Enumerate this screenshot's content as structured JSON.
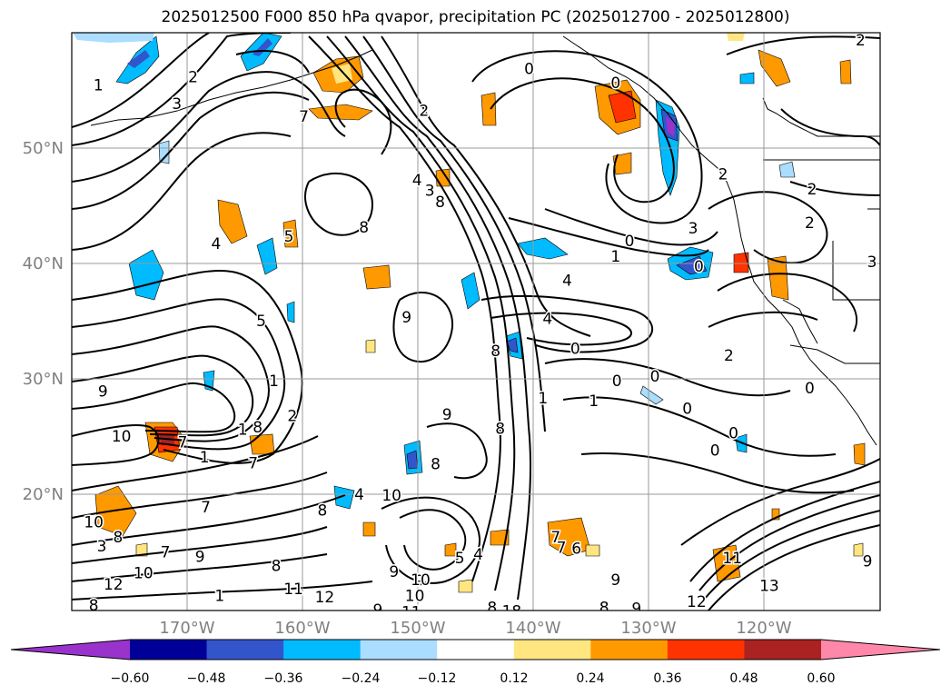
{
  "title": "2025012500 F000 850 hPa qvapor, precipitation PC (2025012700 - 2025012800)",
  "chart_data": {
    "type": "heatmap",
    "title": "2025012500 F000 850 hPa qvapor, precipitation PC (2025012700 - 2025012800)",
    "projection": "map",
    "lon_range": [
      -179,
      -109
    ],
    "lat_range": [
      10,
      60
    ],
    "x_ticks": [
      "170°W",
      "160°W",
      "150°W",
      "140°W",
      "130°W",
      "120°W"
    ],
    "x_tick_values": [
      -170,
      -160,
      -150,
      -140,
      -130,
      -120
    ],
    "y_ticks": [
      "50°N",
      "40°N",
      "30°N",
      "20°N"
    ],
    "y_tick_values": [
      50,
      40,
      30,
      20
    ],
    "grid": true,
    "colorbar": {
      "orientation": "horizontal",
      "extend": "both",
      "tick_labels": [
        "−0.60",
        "−0.48",
        "−0.36",
        "−0.24",
        "−0.12",
        "0.12",
        "0.24",
        "0.36",
        "0.48",
        "0.60"
      ],
      "tick_values": [
        -0.6,
        -0.48,
        -0.36,
        -0.24,
        -0.12,
        0.12,
        0.24,
        0.36,
        0.48,
        0.6
      ],
      "colors": [
        "#9933cc",
        "#000099",
        "#3355cc",
        "#00bbff",
        "#aaddff",
        "#ffffff",
        "#ffe680",
        "#ff9900",
        "#ff3300",
        "#aa2222",
        "#ff88aa"
      ]
    },
    "contour_labels": [
      {
        "text": "1",
        "lon": -176.7,
        "lat": 55.4
      },
      {
        "text": "2",
        "lon": -168.5,
        "lat": 56.1
      },
      {
        "text": "3",
        "lon": -169.9,
        "lat": 53.8
      },
      {
        "text": "7",
        "lon": -158.9,
        "lat": 52.7
      },
      {
        "text": "2",
        "lon": -148.5,
        "lat": 53.2
      },
      {
        "text": "0",
        "lon": -139.4,
        "lat": 56.8
      },
      {
        "text": "0",
        "lon": -131.9,
        "lat": 55.6
      },
      {
        "text": "2",
        "lon": -122.6,
        "lat": 47.7
      },
      {
        "text": "3",
        "lon": -125.2,
        "lat": 43.0
      },
      {
        "text": "2",
        "lon": -110.7,
        "lat": 59.3
      },
      {
        "text": "2",
        "lon": -114.9,
        "lat": 46.4
      },
      {
        "text": "2",
        "lon": -115.1,
        "lat": 43.5
      },
      {
        "text": "3",
        "lon": -109.7,
        "lat": 40.1
      },
      {
        "text": "1",
        "lon": -131.9,
        "lat": 40.6
      },
      {
        "text": "0",
        "lon": -130.7,
        "lat": 41.9
      },
      {
        "text": "0",
        "lon": -124.7,
        "lat": 39.7
      },
      {
        "text": "4",
        "lon": -166.5,
        "lat": 41.7
      },
      {
        "text": "5",
        "lon": -160.2,
        "lat": 42.3
      },
      {
        "text": "3",
        "lon": -148.0,
        "lat": 46.3
      },
      {
        "text": "4",
        "lon": -149.1,
        "lat": 47.2
      },
      {
        "text": "8",
        "lon": -147.1,
        "lat": 45.3
      },
      {
        "text": "8",
        "lon": -153.7,
        "lat": 43.1
      },
      {
        "text": "4",
        "lon": -136.1,
        "lat": 38.5
      },
      {
        "text": "4",
        "lon": -137.8,
        "lat": 35.2
      },
      {
        "text": "9",
        "lon": -150.0,
        "lat": 35.3
      },
      {
        "text": "5",
        "lon": -162.6,
        "lat": 35.0
      },
      {
        "text": "8",
        "lon": -142.3,
        "lat": 32.4
      },
      {
        "text": "2",
        "lon": -122.1,
        "lat": 32.0
      },
      {
        "text": "0",
        "lon": -135.4,
        "lat": 32.6
      },
      {
        "text": "0",
        "lon": -131.8,
        "lat": 29.8
      },
      {
        "text": "0",
        "lon": -128.5,
        "lat": 30.2
      },
      {
        "text": "0",
        "lon": -125.7,
        "lat": 27.4
      },
      {
        "text": "0",
        "lon": -121.7,
        "lat": 25.3
      },
      {
        "text": "0",
        "lon": -123.3,
        "lat": 23.8
      },
      {
        "text": "0",
        "lon": -115.1,
        "lat": 29.2
      },
      {
        "text": "1",
        "lon": -138.2,
        "lat": 28.3
      },
      {
        "text": "1",
        "lon": -133.8,
        "lat": 28.1
      },
      {
        "text": "9",
        "lon": -176.3,
        "lat": 28.9
      },
      {
        "text": "10",
        "lon": -174.7,
        "lat": 25.0
      },
      {
        "text": "7",
        "lon": -169.4,
        "lat": 24.5
      },
      {
        "text": "1",
        "lon": -167.5,
        "lat": 23.2
      },
      {
        "text": "1",
        "lon": -164.2,
        "lat": 25.6
      },
      {
        "text": "7",
        "lon": -163.3,
        "lat": 22.7
      },
      {
        "text": "7",
        "lon": -167.4,
        "lat": 18.9
      },
      {
        "text": "8",
        "lon": -162.9,
        "lat": 25.8
      },
      {
        "text": "1",
        "lon": -161.5,
        "lat": 29.8
      },
      {
        "text": "2",
        "lon": -159.9,
        "lat": 26.8
      },
      {
        "text": "9",
        "lon": -146.5,
        "lat": 26.9
      },
      {
        "text": "8",
        "lon": -147.5,
        "lat": 22.6
      },
      {
        "text": "8",
        "lon": -141.9,
        "lat": 25.7
      },
      {
        "text": "10",
        "lon": -151.3,
        "lat": 19.9
      },
      {
        "text": "8",
        "lon": -157.3,
        "lat": 18.6
      },
      {
        "text": "4",
        "lon": -154.1,
        "lat": 20.0
      },
      {
        "text": "10",
        "lon": -177.1,
        "lat": 17.6
      },
      {
        "text": "8",
        "lon": -175.0,
        "lat": 16.3
      },
      {
        "text": "7",
        "lon": -170.9,
        "lat": 15.0
      },
      {
        "text": "9",
        "lon": -167.9,
        "lat": 14.6
      },
      {
        "text": "3",
        "lon": -176.4,
        "lat": 15.5
      },
      {
        "text": "10",
        "lon": -172.8,
        "lat": 13.2
      },
      {
        "text": "12",
        "lon": -175.4,
        "lat": 12.2
      },
      {
        "text": "1",
        "lon": -166.2,
        "lat": 11.2
      },
      {
        "text": "8",
        "lon": -161.3,
        "lat": 13.8
      },
      {
        "text": "11",
        "lon": -159.8,
        "lat": 11.8
      },
      {
        "text": "12",
        "lon": -157.1,
        "lat": 11.1
      },
      {
        "text": "13",
        "lon": -158.5,
        "lat": 8.1
      },
      {
        "text": "8",
        "lon": -177.1,
        "lat": 10.4
      },
      {
        "text": "9",
        "lon": -151.1,
        "lat": 13.3
      },
      {
        "text": "9",
        "lon": -148.9,
        "lat": 12.5
      },
      {
        "text": "5",
        "lon": -145.4,
        "lat": 14.5
      },
      {
        "text": "4",
        "lon": -143.8,
        "lat": 14.8
      },
      {
        "text": "10",
        "lon": -148.8,
        "lat": 12.6
      },
      {
        "text": "9",
        "lon": -152.5,
        "lat": 10.0
      },
      {
        "text": "10",
        "lon": -149.3,
        "lat": 11.2
      },
      {
        "text": "11",
        "lon": -149.6,
        "lat": 9.8
      },
      {
        "text": "8",
        "lon": -142.6,
        "lat": 10.2
      },
      {
        "text": "18",
        "lon": -140.9,
        "lat": 9.9
      },
      {
        "text": "7",
        "lon": -137.1,
        "lat": 16.3
      },
      {
        "text": "7",
        "lon": -136.6,
        "lat": 15.4
      },
      {
        "text": "6",
        "lon": -135.3,
        "lat": 15.3
      },
      {
        "text": "8",
        "lon": -132.9,
        "lat": 10.2
      },
      {
        "text": "9",
        "lon": -130.1,
        "lat": 10.1
      },
      {
        "text": "9",
        "lon": -131.9,
        "lat": 12.6
      },
      {
        "text": "12",
        "lon": -124.9,
        "lat": 10.7
      },
      {
        "text": "11",
        "lon": -121.8,
        "lat": 14.5
      },
      {
        "text": "13",
        "lon": -118.6,
        "lat": 12.1
      },
      {
        "text": "9",
        "lon": -110.1,
        "lat": 14.2
      }
    ]
  }
}
